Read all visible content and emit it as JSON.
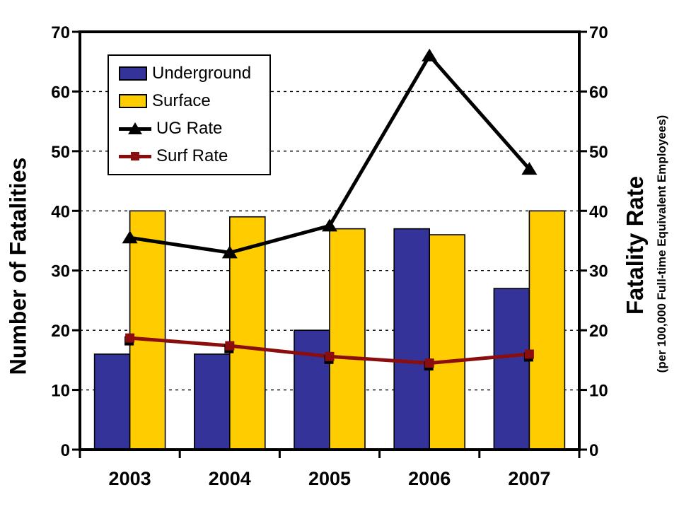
{
  "colors": {
    "underground": "#333399",
    "surface": "#FFCC00",
    "ug_rate": "#000000",
    "surf_rate": "#8B0E0E",
    "grid": "#000000",
    "background": "#FFFFFF"
  },
  "chart_data": {
    "type": "bar",
    "subtype": "combo-bar-line-dual-axis",
    "categories": [
      "2003",
      "2004",
      "2005",
      "2006",
      "2007"
    ],
    "series": [
      {
        "name": "Underground",
        "type": "bar",
        "axis": "left",
        "color": "#333399",
        "values": [
          16,
          16,
          20,
          37,
          27
        ]
      },
      {
        "name": "Surface",
        "type": "bar",
        "axis": "left",
        "color": "#FFCC00",
        "values": [
          40,
          39,
          37,
          36,
          40
        ]
      },
      {
        "name": "UG Rate",
        "type": "line",
        "axis": "right",
        "color": "#000000",
        "marker": "triangle",
        "values": [
          35.5,
          33,
          37.5,
          66,
          47
        ]
      },
      {
        "name": "Surf Rate",
        "type": "line",
        "axis": "right",
        "color": "#8B0E0E",
        "marker": "square",
        "values": [
          18.7,
          17.4,
          15.6,
          14.5,
          16
        ]
      }
    ],
    "left_axis": {
      "title": "Number of Fatalities",
      "min": 0,
      "max": 70,
      "tick_interval": 10
    },
    "right_axis": {
      "title": "Fatality Rate",
      "subtitle": "(per 100,000 Full-time Equivalent Employees)",
      "min": 0,
      "max": 70,
      "tick_interval": 10
    },
    "grid": "horizontal-dashed",
    "legend_position": "inside-top-left",
    "title": ""
  }
}
